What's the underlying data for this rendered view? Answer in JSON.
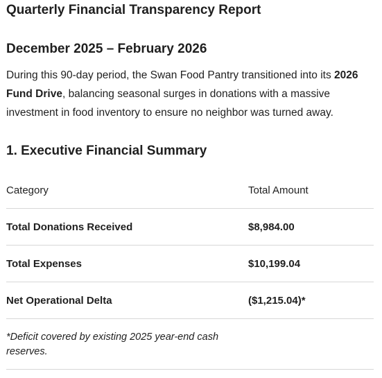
{
  "report": {
    "title": "Quarterly Financial Transparency Report",
    "period": "December 2025 – February 2026",
    "intro": {
      "before": "During this 90-day period, the Swan Food Pantry transitioned into its ",
      "bold": "2026 Fund Drive",
      "after": ", balancing seasonal surges in donations with a massive investment in food inventory to ensure no neighbor was turned away."
    }
  },
  "summary": {
    "heading": "1. Executive Financial Summary",
    "columns": [
      "Category",
      "Total Amount"
    ],
    "rows": [
      {
        "category": "Total Donations Received",
        "amount": "$8,984.00"
      },
      {
        "category": "Total Expenses",
        "amount": "$10,199.04"
      },
      {
        "category": "Net Operational Delta",
        "amount": "($1,215.04)*"
      }
    ],
    "footnote": "*Deficit covered by existing 2025 year-end cash reserves."
  }
}
